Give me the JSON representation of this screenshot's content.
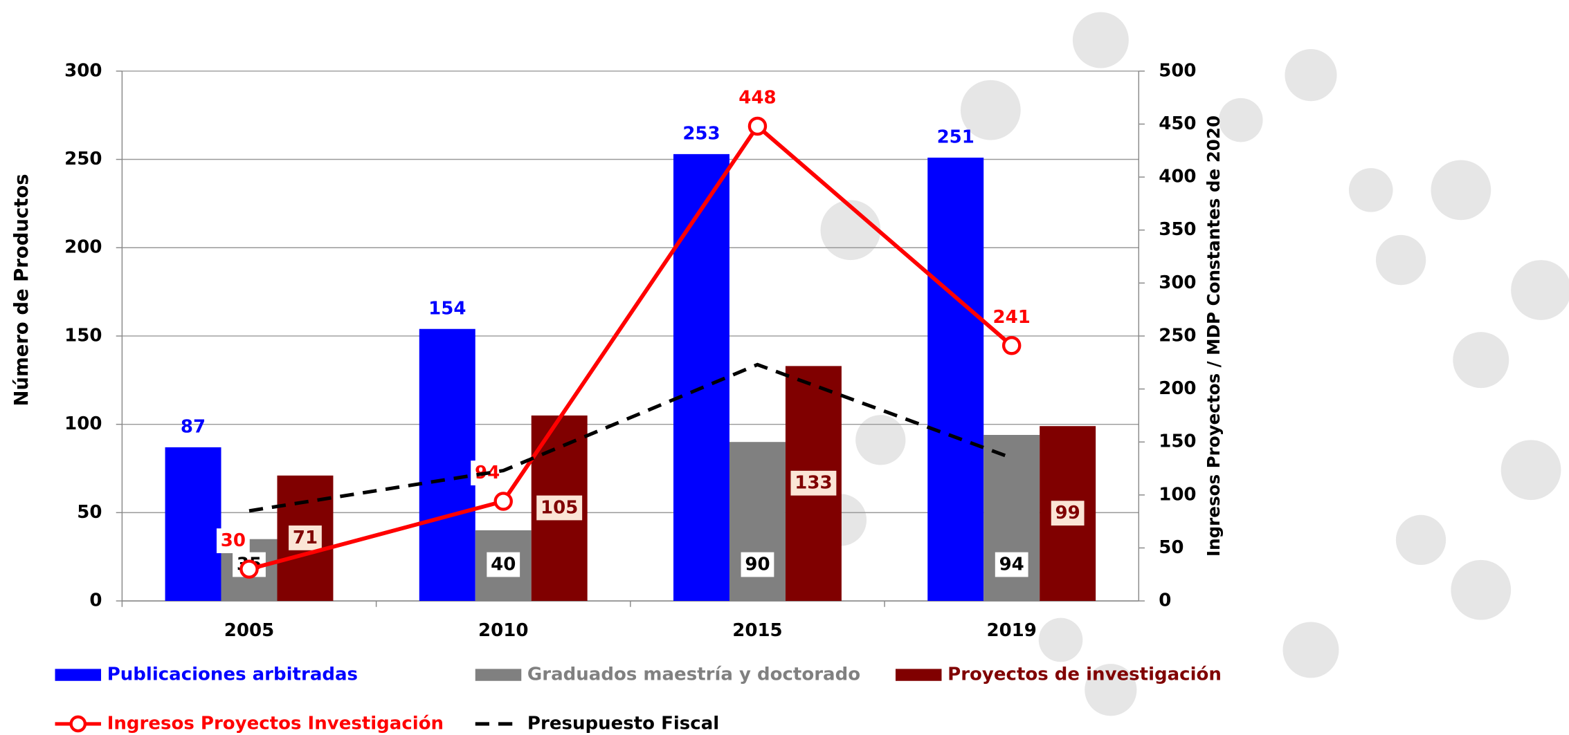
{
  "chart_data": {
    "type": "bar-line",
    "categories": [
      "2005",
      "2010",
      "2015",
      "2019"
    ],
    "y_label": "Número de Productos",
    "y2_label": "Ingresos Proyectos / MDP Constantes de 2020",
    "ylim": [
      0,
      300
    ],
    "yticks": [
      0,
      50,
      100,
      150,
      200,
      250,
      300
    ],
    "y2lim": [
      0,
      500
    ],
    "y2ticks": [
      0,
      50,
      100,
      150,
      200,
      250,
      300,
      350,
      400,
      450,
      500
    ],
    "grid": true,
    "legend": "bottom",
    "series": [
      {
        "name": "Publicaciones arbitradas",
        "type": "bar",
        "color": "#0000ff",
        "values": [
          87,
          154,
          253,
          251
        ]
      },
      {
        "name": "Graduados maestría y doctorado",
        "type": "bar",
        "color": "#808080",
        "values": [
          35,
          40,
          90,
          94
        ]
      },
      {
        "name": "Proyectos de investigación",
        "type": "bar",
        "color": "#800000",
        "values": [
          71,
          105,
          133,
          99
        ]
      },
      {
        "name": "Ingresos Proyectos Investigación",
        "type": "line",
        "axis": "y2",
        "color": "#ff0000",
        "marker": "circle",
        "values": [
          30,
          94,
          448,
          241
        ]
      },
      {
        "name": "Presupuesto Fiscal",
        "type": "line",
        "axis": "y2",
        "color": "#000000",
        "dashed": true,
        "show_labels": false,
        "values": [
          85,
          123,
          223,
          135
        ]
      }
    ]
  }
}
